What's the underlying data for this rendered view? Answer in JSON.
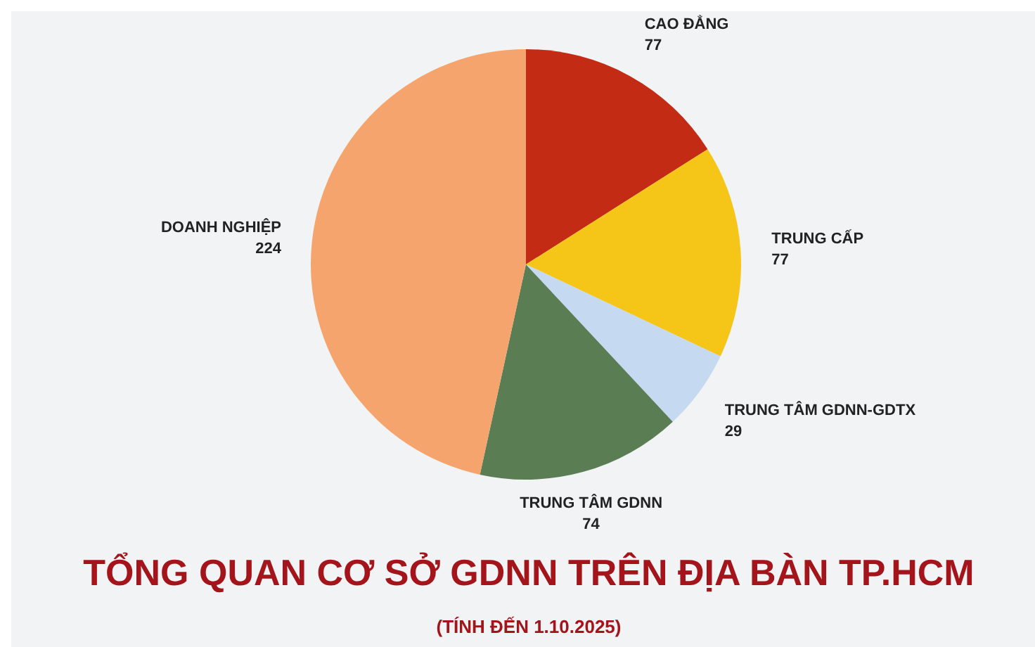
{
  "chart_data": {
    "type": "pie",
    "title": "TỔNG QUAN CƠ SỞ GDNN TRÊN ĐỊA BÀN TP.HCM",
    "subtitle": "(TÍNH ĐẾN 1.10.2025)",
    "categories": [
      "CAO ĐẲNG",
      "TRUNG CẤP",
      "TRUNG TÂM GDNN-GDTX",
      "TRUNG TÂM GDNN",
      "DOANH NGHIỆP"
    ],
    "values": [
      77,
      77,
      29,
      74,
      224
    ],
    "colors": [
      "#c32b14",
      "#f5c518",
      "#c5d9f1",
      "#5a7d53",
      "#f4a46c"
    ],
    "data_labels": true
  }
}
